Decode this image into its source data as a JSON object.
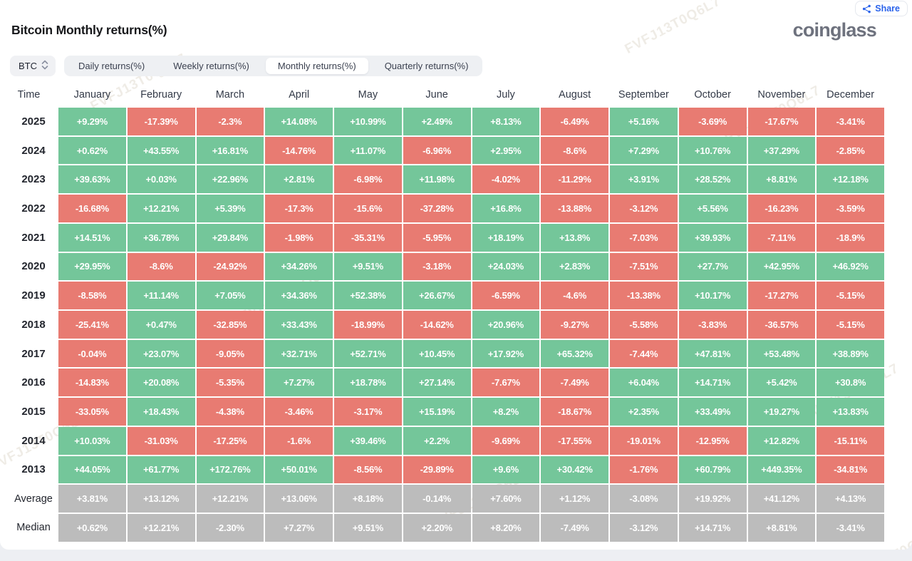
{
  "header": {
    "title": "Bitcoin Monthly returns(%)",
    "brand": "coinglass",
    "share_label": "Share"
  },
  "controls": {
    "symbol": "BTC",
    "tabs": [
      {
        "label": "Daily returns(%)",
        "active": false
      },
      {
        "label": "Weekly returns(%)",
        "active": false
      },
      {
        "label": "Monthly returns(%)",
        "active": true
      },
      {
        "label": "Quarterly returns(%)",
        "active": false
      }
    ]
  },
  "watermark": {
    "text": "FVFJ13T0Q6L7"
  },
  "chart_data": {
    "type": "heatmap",
    "title": "Bitcoin Monthly returns(%)",
    "time_label": "Time",
    "columns": [
      "January",
      "February",
      "March",
      "April",
      "May",
      "June",
      "July",
      "August",
      "September",
      "October",
      "November",
      "December"
    ],
    "colors": {
      "positive": "#74c69a",
      "negative": "#e87b72",
      "summary": "#bcbcbc"
    },
    "rows": [
      {
        "label": "2025",
        "kind": "year",
        "values": [
          "+9.29%",
          "-17.39%",
          "-2.3%",
          "+14.08%",
          "+10.99%",
          "+2.49%",
          "+8.13%",
          "-6.49%",
          "+5.16%",
          "-3.69%",
          "-17.67%",
          "-3.41%"
        ]
      },
      {
        "label": "2024",
        "kind": "year",
        "values": [
          "+0.62%",
          "+43.55%",
          "+16.81%",
          "-14.76%",
          "+11.07%",
          "-6.96%",
          "+2.95%",
          "-8.6%",
          "+7.29%",
          "+10.76%",
          "+37.29%",
          "-2.85%"
        ]
      },
      {
        "label": "2023",
        "kind": "year",
        "values": [
          "+39.63%",
          "+0.03%",
          "+22.96%",
          "+2.81%",
          "-6.98%",
          "+11.98%",
          "-4.02%",
          "-11.29%",
          "+3.91%",
          "+28.52%",
          "+8.81%",
          "+12.18%"
        ]
      },
      {
        "label": "2022",
        "kind": "year",
        "values": [
          "-16.68%",
          "+12.21%",
          "+5.39%",
          "-17.3%",
          "-15.6%",
          "-37.28%",
          "+16.8%",
          "-13.88%",
          "-3.12%",
          "+5.56%",
          "-16.23%",
          "-3.59%"
        ]
      },
      {
        "label": "2021",
        "kind": "year",
        "values": [
          "+14.51%",
          "+36.78%",
          "+29.84%",
          "-1.98%",
          "-35.31%",
          "-5.95%",
          "+18.19%",
          "+13.8%",
          "-7.03%",
          "+39.93%",
          "-7.11%",
          "-18.9%"
        ]
      },
      {
        "label": "2020",
        "kind": "year",
        "values": [
          "+29.95%",
          "-8.6%",
          "-24.92%",
          "+34.26%",
          "+9.51%",
          "-3.18%",
          "+24.03%",
          "+2.83%",
          "-7.51%",
          "+27.7%",
          "+42.95%",
          "+46.92%"
        ]
      },
      {
        "label": "2019",
        "kind": "year",
        "values": [
          "-8.58%",
          "+11.14%",
          "+7.05%",
          "+34.36%",
          "+52.38%",
          "+26.67%",
          "-6.59%",
          "-4.6%",
          "-13.38%",
          "+10.17%",
          "-17.27%",
          "-5.15%"
        ]
      },
      {
        "label": "2018",
        "kind": "year",
        "values": [
          "-25.41%",
          "+0.47%",
          "-32.85%",
          "+33.43%",
          "-18.99%",
          "-14.62%",
          "+20.96%",
          "-9.27%",
          "-5.58%",
          "-3.83%",
          "-36.57%",
          "-5.15%"
        ]
      },
      {
        "label": "2017",
        "kind": "year",
        "values": [
          "-0.04%",
          "+23.07%",
          "-9.05%",
          "+32.71%",
          "+52.71%",
          "+10.45%",
          "+17.92%",
          "+65.32%",
          "-7.44%",
          "+47.81%",
          "+53.48%",
          "+38.89%"
        ]
      },
      {
        "label": "2016",
        "kind": "year",
        "values": [
          "-14.83%",
          "+20.08%",
          "-5.35%",
          "+7.27%",
          "+18.78%",
          "+27.14%",
          "-7.67%",
          "-7.49%",
          "+6.04%",
          "+14.71%",
          "+5.42%",
          "+30.8%"
        ]
      },
      {
        "label": "2015",
        "kind": "year",
        "values": [
          "-33.05%",
          "+18.43%",
          "-4.38%",
          "-3.46%",
          "-3.17%",
          "+15.19%",
          "+8.2%",
          "-18.67%",
          "+2.35%",
          "+33.49%",
          "+19.27%",
          "+13.83%"
        ]
      },
      {
        "label": "2014",
        "kind": "year",
        "values": [
          "+10.03%",
          "-31.03%",
          "-17.25%",
          "-1.6%",
          "+39.46%",
          "+2.2%",
          "-9.69%",
          "-17.55%",
          "-19.01%",
          "-12.95%",
          "+12.82%",
          "-15.11%"
        ]
      },
      {
        "label": "2013",
        "kind": "year",
        "values": [
          "+44.05%",
          "+61.77%",
          "+172.76%",
          "+50.01%",
          "-8.56%",
          "-29.89%",
          "+9.6%",
          "+30.42%",
          "-1.76%",
          "+60.79%",
          "+449.35%",
          "-34.81%"
        ]
      },
      {
        "label": "Average",
        "kind": "summary",
        "values": [
          "+3.81%",
          "+13.12%",
          "+12.21%",
          "+13.06%",
          "+8.18%",
          "-0.14%",
          "+7.60%",
          "+1.12%",
          "-3.08%",
          "+19.92%",
          "+41.12%",
          "+4.13%"
        ]
      },
      {
        "label": "Median",
        "kind": "summary",
        "values": [
          "+0.62%",
          "+12.21%",
          "-2.30%",
          "+7.27%",
          "+9.51%",
          "+2.20%",
          "+8.20%",
          "-7.49%",
          "-3.12%",
          "+14.71%",
          "+8.81%",
          "-3.41%"
        ]
      }
    ]
  }
}
